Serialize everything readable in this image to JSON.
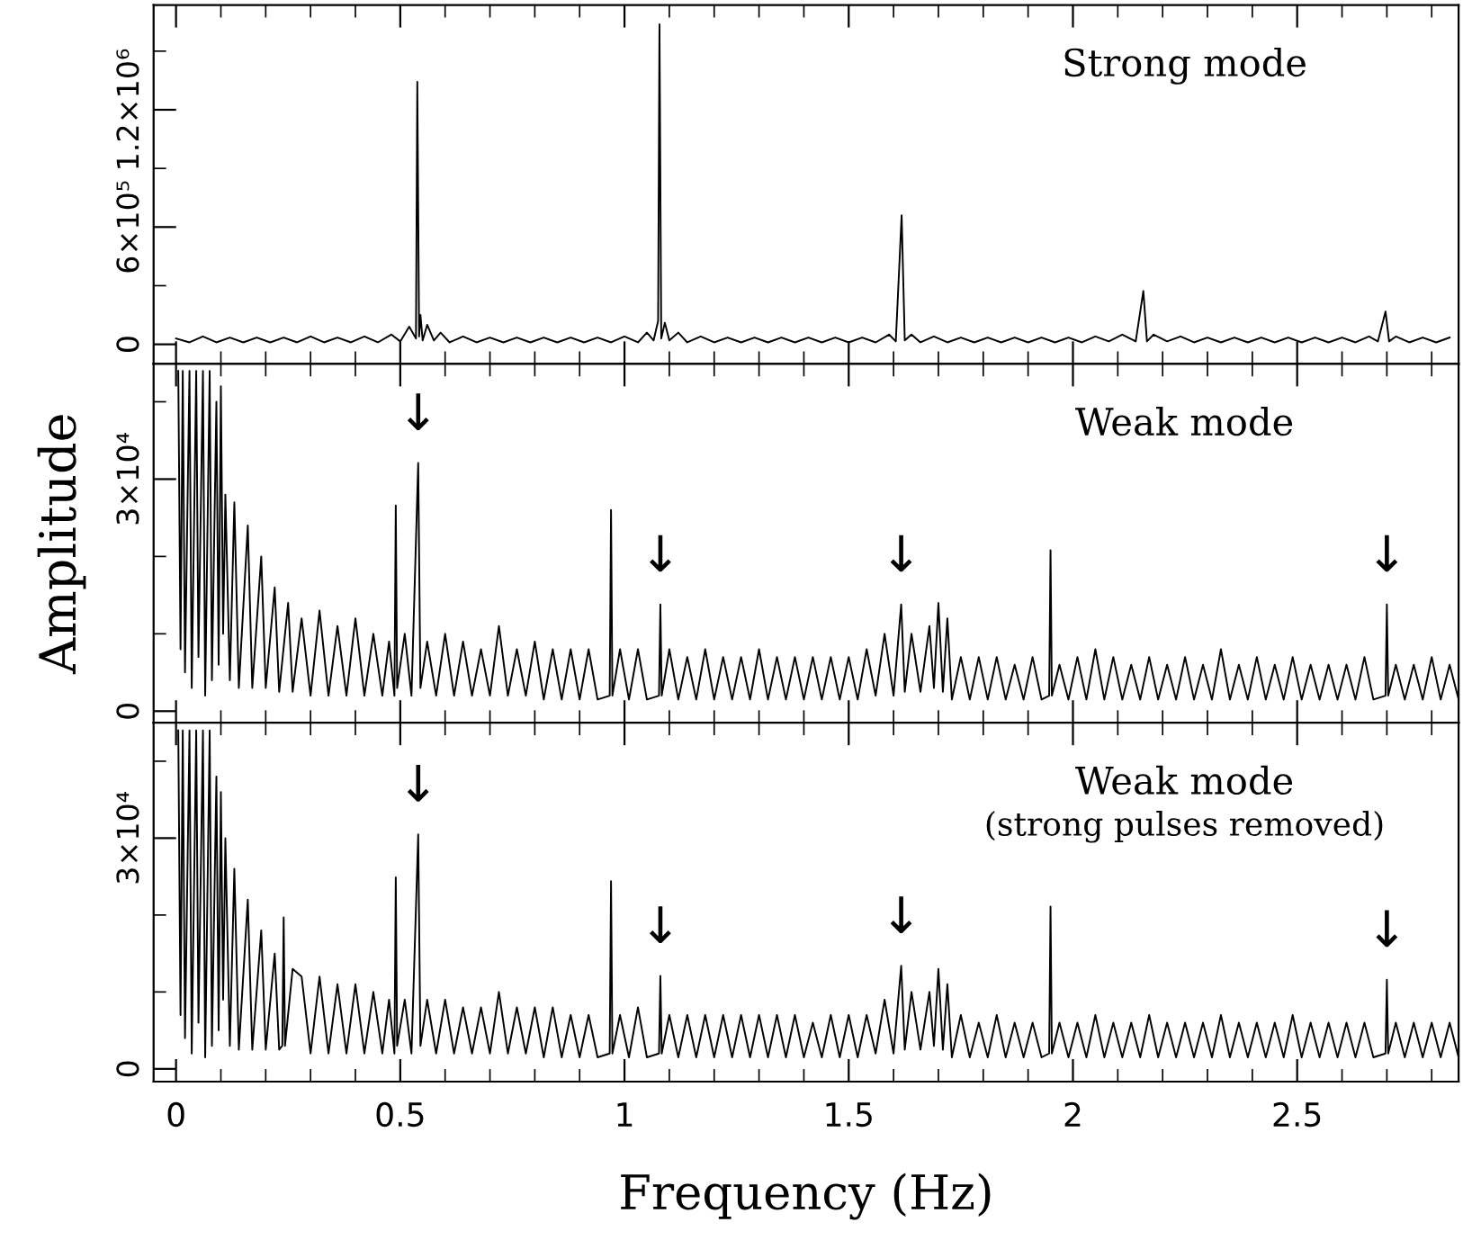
{
  "chart_data": [
    {
      "type": "line",
      "xlim": [
        -0.05,
        2.86
      ],
      "ylim": [
        -100000,
        1736000
      ],
      "tick_labels": "y",
      "xticks": [
        0,
        {
          "value": 0.1,
          "label": null
        },
        {
          "value": 0.2,
          "label": null
        },
        {
          "value": 0.3,
          "label": null
        },
        {
          "value": 0.4,
          "label": null
        },
        0.5,
        {
          "value": 0.6,
          "label": null
        },
        {
          "value": 0.7,
          "label": null
        },
        {
          "value": 0.8,
          "label": null
        },
        {
          "value": 0.9,
          "label": null
        },
        1,
        {
          "value": 1.1,
          "label": null
        },
        {
          "value": 1.2,
          "label": null
        },
        {
          "value": 1.3,
          "label": null
        },
        {
          "value": 1.4,
          "label": null
        },
        1.5,
        {
          "value": 1.6,
          "label": null
        },
        {
          "value": 1.7,
          "label": null
        },
        {
          "value": 1.8,
          "label": null
        },
        {
          "value": 1.9,
          "label": null
        },
        2,
        {
          "value": 2.1,
          "label": null
        },
        {
          "value": 2.2,
          "label": null
        },
        {
          "value": 2.3,
          "label": null
        },
        {
          "value": 2.4,
          "label": null
        },
        2.5,
        {
          "value": 2.6,
          "label": null
        },
        {
          "value": 2.7,
          "label": null
        },
        {
          "value": 2.8,
          "label": null
        }
      ],
      "yticks": [
        0,
        {
          "value": 300000,
          "label": null
        },
        {
          "value": 600000,
          "label": "6×10⁵"
        },
        {
          "value": 900000,
          "label": null
        },
        {
          "value": 1200000,
          "label": "1.2×10⁶"
        },
        {
          "value": 1500000,
          "label": null
        }
      ],
      "annotations": [
        "Strong mode"
      ],
      "series": [
        {
          "color": "#000000",
          "x": [
            0,
            0.03,
            0.06,
            0.09,
            0.12,
            0.15,
            0.18,
            0.21,
            0.24,
            0.27,
            0.3,
            0.33,
            0.36,
            0.39,
            0.42,
            0.45,
            0.48,
            0.5,
            0.52,
            0.535,
            0.538,
            0.542,
            0.545,
            0.55,
            0.56,
            0.575,
            0.59,
            0.61,
            0.64,
            0.67,
            0.7,
            0.73,
            0.76,
            0.79,
            0.82,
            0.85,
            0.88,
            0.91,
            0.94,
            0.97,
            1.0,
            1.03,
            1.05,
            1.065,
            1.075,
            1.078,
            1.082,
            1.09,
            1.1,
            1.12,
            1.14,
            1.17,
            1.2,
            1.23,
            1.26,
            1.29,
            1.32,
            1.35,
            1.38,
            1.41,
            1.44,
            1.47,
            1.5,
            1.53,
            1.56,
            1.59,
            1.605,
            1.618,
            1.625,
            1.64,
            1.66,
            1.69,
            1.72,
            1.75,
            1.78,
            1.81,
            1.84,
            1.87,
            1.9,
            1.93,
            1.96,
            1.99,
            2.02,
            2.05,
            2.08,
            2.11,
            2.14,
            2.157,
            2.165,
            2.18,
            2.21,
            2.24,
            2.27,
            2.3,
            2.33,
            2.36,
            2.39,
            2.42,
            2.45,
            2.48,
            2.51,
            2.54,
            2.57,
            2.6,
            2.63,
            2.66,
            2.68,
            2.697,
            2.705,
            2.72,
            2.75,
            2.78,
            2.81,
            2.84
          ],
          "values": [
            30000,
            10000,
            40000,
            10000,
            35000,
            10000,
            35000,
            10000,
            35000,
            10000,
            40000,
            10000,
            35000,
            10000,
            40000,
            10000,
            50000,
            15000,
            90000,
            30000,
            1343000,
            40000,
            150000,
            20000,
            100000,
            20000,
            60000,
            10000,
            40000,
            10000,
            35000,
            10000,
            35000,
            10000,
            35000,
            10000,
            35000,
            10000,
            35000,
            10000,
            40000,
            10000,
            60000,
            20000,
            120000,
            1637000,
            30000,
            110000,
            20000,
            60000,
            10000,
            40000,
            10000,
            35000,
            10000,
            35000,
            10000,
            35000,
            10000,
            35000,
            10000,
            35000,
            10000,
            35000,
            10000,
            50000,
            15000,
            660000,
            20000,
            50000,
            10000,
            40000,
            10000,
            35000,
            10000,
            35000,
            10000,
            35000,
            10000,
            35000,
            10000,
            35000,
            10000,
            40000,
            15000,
            50000,
            15000,
            273000,
            15000,
            50000,
            15000,
            40000,
            10000,
            35000,
            10000,
            35000,
            10000,
            35000,
            10000,
            35000,
            10000,
            35000,
            10000,
            35000,
            10000,
            40000,
            15000,
            168000,
            15000,
            40000,
            10000,
            35000,
            10000,
            35000
          ]
        }
      ]
    },
    {
      "type": "line",
      "xlim": [
        -0.05,
        2.86
      ],
      "ylim": [
        -1500,
        44900
      ],
      "tick_labels": "y",
      "ylabel": "Amplitude",
      "xticks": [
        0,
        {
          "value": 0.1,
          "label": null
        },
        {
          "value": 0.2,
          "label": null
        },
        {
          "value": 0.3,
          "label": null
        },
        {
          "value": 0.4,
          "label": null
        },
        0.5,
        {
          "value": 0.6,
          "label": null
        },
        {
          "value": 0.7,
          "label": null
        },
        {
          "value": 0.8,
          "label": null
        },
        {
          "value": 0.9,
          "label": null
        },
        1,
        {
          "value": 1.1,
          "label": null
        },
        {
          "value": 1.2,
          "label": null
        },
        {
          "value": 1.3,
          "label": null
        },
        {
          "value": 1.4,
          "label": null
        },
        1.5,
        {
          "value": 1.6,
          "label": null
        },
        {
          "value": 1.7,
          "label": null
        },
        {
          "value": 1.8,
          "label": null
        },
        {
          "value": 1.9,
          "label": null
        },
        2,
        {
          "value": 2.1,
          "label": null
        },
        {
          "value": 2.2,
          "label": null
        },
        {
          "value": 2.3,
          "label": null
        },
        {
          "value": 2.4,
          "label": null
        },
        2.5,
        {
          "value": 2.6,
          "label": null
        },
        {
          "value": 2.7,
          "label": null
        },
        {
          "value": 2.8,
          "label": null
        }
      ],
      "yticks": [
        0,
        {
          "value": 10000,
          "label": null
        },
        {
          "value": 20000,
          "label": null
        },
        {
          "value": 30000,
          "label": "3×10⁴"
        },
        {
          "value": 40000,
          "label": null
        }
      ],
      "annotations": [
        "Weak mode",
        {
          "text": "↓",
          "x": 0.54,
          "y": 32100
        },
        {
          "text": "↓",
          "x": 1.08,
          "y": 13800
        },
        {
          "text": "↓",
          "x": 1.617,
          "y": 13800
        },
        {
          "text": "↓",
          "x": 2.7,
          "y": 13800
        }
      ],
      "series": [
        {
          "color": "#000000",
          "x": [
            0.005,
            0.01,
            0.015,
            0.02,
            0.03,
            0.035,
            0.045,
            0.05,
            0.06,
            0.065,
            0.075,
            0.08,
            0.09,
            0.095,
            0.1,
            0.105,
            0.11,
            0.12,
            0.13,
            0.14,
            0.16,
            0.17,
            0.19,
            0.2,
            0.22,
            0.23,
            0.25,
            0.26,
            0.28,
            0.3,
            0.32,
            0.34,
            0.36,
            0.38,
            0.4,
            0.42,
            0.44,
            0.46,
            0.475,
            0.487,
            0.49,
            0.493,
            0.51,
            0.525,
            0.54,
            0.545,
            0.56,
            0.58,
            0.6,
            0.62,
            0.64,
            0.66,
            0.68,
            0.7,
            0.72,
            0.74,
            0.76,
            0.78,
            0.8,
            0.82,
            0.84,
            0.86,
            0.88,
            0.9,
            0.92,
            0.94,
            0.967,
            0.97,
            0.973,
            0.99,
            1.01,
            1.03,
            1.05,
            1.077,
            1.08,
            1.083,
            1.1,
            1.12,
            1.14,
            1.16,
            1.18,
            1.2,
            1.22,
            1.24,
            1.26,
            1.28,
            1.3,
            1.32,
            1.34,
            1.36,
            1.38,
            1.4,
            1.42,
            1.44,
            1.46,
            1.48,
            1.5,
            1.52,
            1.54,
            1.56,
            1.58,
            1.6,
            1.617,
            1.625,
            1.64,
            1.66,
            1.68,
            1.69,
            1.7,
            1.71,
            1.72,
            1.73,
            1.75,
            1.77,
            1.79,
            1.81,
            1.83,
            1.85,
            1.87,
            1.89,
            1.91,
            1.93,
            1.947,
            1.95,
            1.953,
            1.97,
            1.99,
            2.01,
            2.03,
            2.05,
            2.07,
            2.09,
            2.11,
            2.13,
            2.15,
            2.17,
            2.19,
            2.21,
            2.23,
            2.25,
            2.27,
            2.29,
            2.31,
            2.33,
            2.35,
            2.37,
            2.39,
            2.41,
            2.43,
            2.45,
            2.47,
            2.49,
            2.51,
            2.53,
            2.55,
            2.57,
            2.59,
            2.61,
            2.63,
            2.65,
            2.67,
            2.697,
            2.7,
            2.703,
            2.72,
            2.74,
            2.76,
            2.78,
            2.8,
            2.82,
            2.84,
            2.86
          ],
          "values": [
            44000,
            8000,
            44000,
            5000,
            44000,
            3000,
            44000,
            7000,
            44000,
            2000,
            44000,
            4000,
            40000,
            6000,
            42000,
            10000,
            28000,
            4000,
            27000,
            3000,
            24000,
            3000,
            20000,
            3000,
            16000,
            2500,
            14000,
            2500,
            12000,
            2000,
            13000,
            2000,
            11000,
            2000,
            12000,
            2000,
            10000,
            2000,
            9000,
            2000,
            26600,
            3000,
            10000,
            2000,
            32100,
            3000,
            9000,
            2000,
            10000,
            2000,
            9000,
            2000,
            8000,
            2000,
            11000,
            2000,
            8000,
            2000,
            9000,
            1500,
            8000,
            1500,
            8000,
            1500,
            8000,
            1500,
            2000,
            26000,
            2000,
            8000,
            1500,
            8000,
            1500,
            2000,
            13800,
            2000,
            8000,
            1500,
            7000,
            1500,
            8000,
            1500,
            7000,
            1500,
            7000,
            1500,
            8000,
            1500,
            7000,
            1500,
            7000,
            1500,
            7000,
            1500,
            7000,
            1500,
            7000,
            1500,
            8000,
            2000,
            10000,
            2000,
            13800,
            2500,
            10000,
            2500,
            11000,
            3000,
            14000,
            2500,
            12000,
            1500,
            7000,
            1500,
            7000,
            1500,
            7000,
            1500,
            6000,
            1500,
            7000,
            1500,
            2000,
            20800,
            2000,
            6000,
            1500,
            7000,
            1500,
            8000,
            1500,
            7000,
            1500,
            6000,
            1500,
            7000,
            1500,
            6000,
            1500,
            7000,
            1500,
            6000,
            1500,
            8000,
            1500,
            6000,
            1500,
            7000,
            1500,
            6000,
            1500,
            7000,
            1500,
            6000,
            1500,
            6000,
            1500,
            6000,
            1500,
            7000,
            1500,
            2000,
            13800,
            2000,
            6000,
            1500,
            6000,
            1500,
            7000,
            1500,
            6000,
            1500
          ]
        }
      ]
    },
    {
      "type": "line",
      "xlim": [
        -0.05,
        2.86
      ],
      "ylim": [
        -1660,
        45000
      ],
      "xlabel": "Frequency (Hz)",
      "xticks": [
        0,
        {
          "value": 0.1,
          "label": null
        },
        {
          "value": 0.2,
          "label": null
        },
        {
          "value": 0.3,
          "label": null
        },
        {
          "value": 0.4,
          "label": null
        },
        0.5,
        {
          "value": 0.6,
          "label": null
        },
        {
          "value": 0.7,
          "label": null
        },
        {
          "value": 0.8,
          "label": null
        },
        {
          "value": 0.9,
          "label": null
        },
        1,
        {
          "value": 1.1,
          "label": null
        },
        {
          "value": 1.2,
          "label": null
        },
        {
          "value": 1.3,
          "label": null
        },
        {
          "value": 1.4,
          "label": null
        },
        1.5,
        {
          "value": 1.6,
          "label": null
        },
        {
          "value": 1.7,
          "label": null
        },
        {
          "value": 1.8,
          "label": null
        },
        {
          "value": 1.9,
          "label": null
        },
        2,
        {
          "value": 2.1,
          "label": null
        },
        {
          "value": 2.2,
          "label": null
        },
        {
          "value": 2.3,
          "label": null
        },
        {
          "value": 2.4,
          "label": null
        },
        2.5,
        {
          "value": 2.6,
          "label": null
        },
        {
          "value": 2.7,
          "label": null
        },
        {
          "value": 2.8,
          "label": null
        }
      ],
      "yticks": [
        0,
        {
          "value": 10000,
          "label": null
        },
        {
          "value": 20000,
          "label": null
        },
        {
          "value": 30000,
          "label": "3×10⁴"
        },
        {
          "value": 40000,
          "label": null
        }
      ],
      "annotations": [
        "Weak mode",
        "(strong pulses removed)",
        {
          "text": "↓",
          "x": 0.54,
          "y": 30500
        },
        {
          "text": "↓",
          "x": 1.08,
          "y": 12100
        },
        {
          "text": "↓",
          "x": 1.617,
          "y": 13400
        },
        {
          "text": "↓",
          "x": 2.7,
          "y": 11600
        }
      ],
      "series": [
        {
          "color": "#000000",
          "x": [
            0.005,
            0.01,
            0.015,
            0.02,
            0.03,
            0.035,
            0.045,
            0.05,
            0.06,
            0.065,
            0.075,
            0.08,
            0.09,
            0.095,
            0.1,
            0.105,
            0.11,
            0.12,
            0.13,
            0.14,
            0.16,
            0.17,
            0.19,
            0.2,
            0.22,
            0.23,
            0.237,
            0.24,
            0.243,
            0.26,
            0.28,
            0.3,
            0.32,
            0.34,
            0.36,
            0.38,
            0.4,
            0.42,
            0.44,
            0.46,
            0.475,
            0.487,
            0.49,
            0.493,
            0.51,
            0.525,
            0.54,
            0.545,
            0.56,
            0.58,
            0.6,
            0.62,
            0.64,
            0.66,
            0.68,
            0.7,
            0.72,
            0.74,
            0.76,
            0.78,
            0.8,
            0.82,
            0.84,
            0.86,
            0.88,
            0.9,
            0.92,
            0.94,
            0.967,
            0.97,
            0.973,
            0.99,
            1.01,
            1.03,
            1.05,
            1.077,
            1.08,
            1.083,
            1.1,
            1.12,
            1.14,
            1.16,
            1.18,
            1.2,
            1.22,
            1.24,
            1.26,
            1.28,
            1.3,
            1.32,
            1.34,
            1.36,
            1.38,
            1.4,
            1.42,
            1.44,
            1.46,
            1.48,
            1.5,
            1.52,
            1.54,
            1.56,
            1.58,
            1.6,
            1.617,
            1.625,
            1.64,
            1.66,
            1.68,
            1.69,
            1.7,
            1.71,
            1.72,
            1.73,
            1.75,
            1.77,
            1.79,
            1.81,
            1.83,
            1.85,
            1.87,
            1.89,
            1.91,
            1.93,
            1.947,
            1.95,
            1.953,
            1.97,
            1.99,
            2.01,
            2.03,
            2.05,
            2.07,
            2.09,
            2.11,
            2.13,
            2.15,
            2.17,
            2.19,
            2.21,
            2.23,
            2.25,
            2.27,
            2.29,
            2.31,
            2.33,
            2.35,
            2.37,
            2.39,
            2.41,
            2.43,
            2.45,
            2.47,
            2.49,
            2.51,
            2.53,
            2.55,
            2.57,
            2.59,
            2.61,
            2.63,
            2.65,
            2.67,
            2.697,
            2.7,
            2.703,
            2.72,
            2.74,
            2.76,
            2.78,
            2.8,
            2.82,
            2.84,
            2.86
          ],
          "values": [
            44000,
            7000,
            44000,
            4000,
            44000,
            2000,
            44000,
            6000,
            44000,
            1500,
            44000,
            3000,
            38000,
            5000,
            36000,
            9000,
            30000,
            3000,
            26000,
            2500,
            22000,
            2500,
            18000,
            2500,
            15000,
            2500,
            3000,
            19700,
            3000,
            13000,
            12000,
            2000,
            12000,
            2000,
            11000,
            2000,
            11000,
            2000,
            10000,
            2000,
            9000,
            2000,
            24900,
            3000,
            9000,
            2000,
            30500,
            3000,
            9000,
            2000,
            9000,
            2000,
            8000,
            2000,
            8000,
            2000,
            10000,
            2000,
            8000,
            2000,
            8000,
            1500,
            8000,
            1500,
            7000,
            1500,
            7000,
            1500,
            2000,
            24400,
            2000,
            7000,
            1500,
            8000,
            1500,
            2000,
            12100,
            2000,
            7000,
            1500,
            7000,
            1500,
            7000,
            1500,
            7000,
            1500,
            7000,
            1500,
            7000,
            1500,
            7000,
            1500,
            7000,
            1500,
            6000,
            1500,
            7000,
            1500,
            7000,
            1500,
            7000,
            2000,
            9000,
            2000,
            13400,
            2500,
            10000,
            2500,
            10000,
            3000,
            13000,
            2500,
            11000,
            1500,
            7000,
            1500,
            6000,
            1500,
            7000,
            1500,
            6000,
            1500,
            6000,
            1500,
            2000,
            21100,
            2000,
            6000,
            1500,
            6000,
            1500,
            7000,
            1500,
            6000,
            1500,
            6000,
            1500,
            7000,
            1500,
            6000,
            1500,
            6000,
            1500,
            6000,
            1500,
            7000,
            1500,
            6000,
            1500,
            6000,
            1500,
            6000,
            1500,
            7000,
            1500,
            6000,
            1500,
            6000,
            1500,
            6000,
            1500,
            6000,
            1500,
            2000,
            11600,
            2000,
            6000,
            1500,
            6000,
            1500,
            6000,
            1500,
            6000,
            1500
          ]
        }
      ]
    }
  ]
}
